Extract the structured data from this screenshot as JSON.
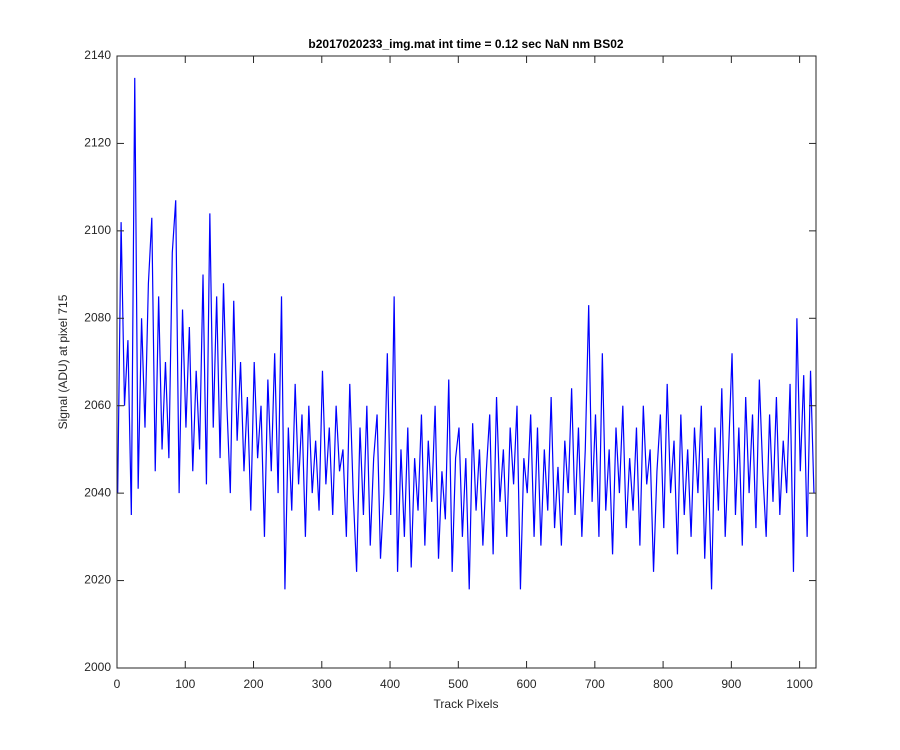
{
  "chart_data": {
    "type": "line",
    "title": "b2017020233_img.mat int time = 0.12 sec  NaN nm BS02",
    "x_label": "Track Pixels",
    "y_label": "Signal (ADU) at pixel 715",
    "x": [
      1,
      6,
      11,
      16,
      21,
      26,
      31,
      36,
      41,
      46,
      51,
      56,
      61,
      66,
      71,
      76,
      81,
      86,
      91,
      96,
      101,
      106,
      111,
      116,
      121,
      126,
      131,
      136,
      141,
      146,
      151,
      156,
      161,
      166,
      171,
      176,
      181,
      186,
      191,
      196,
      201,
      206,
      211,
      216,
      221,
      226,
      231,
      236,
      241,
      246,
      251,
      256,
      261,
      266,
      271,
      276,
      281,
      286,
      291,
      296,
      301,
      306,
      311,
      316,
      321,
      326,
      331,
      336,
      341,
      346,
      351,
      356,
      361,
      366,
      371,
      376,
      381,
      386,
      391,
      396,
      401,
      406,
      411,
      416,
      421,
      426,
      431,
      436,
      441,
      446,
      451,
      456,
      461,
      466,
      471,
      476,
      481,
      486,
      491,
      496,
      501,
      506,
      511,
      516,
      521,
      526,
      531,
      536,
      541,
      546,
      551,
      556,
      561,
      566,
      571,
      576,
      581,
      586,
      591,
      596,
      601,
      606,
      611,
      616,
      621,
      626,
      631,
      636,
      641,
      646,
      651,
      656,
      661,
      666,
      671,
      676,
      681,
      686,
      691,
      696,
      701,
      706,
      711,
      716,
      721,
      726,
      731,
      736,
      741,
      746,
      751,
      756,
      761,
      766,
      771,
      776,
      781,
      786,
      791,
      796,
      801,
      806,
      811,
      816,
      821,
      826,
      831,
      836,
      841,
      846,
      851,
      856,
      861,
      866,
      871,
      876,
      881,
      886,
      891,
      896,
      901,
      906,
      911,
      916,
      921,
      926,
      931,
      936,
      941,
      946,
      951,
      956,
      961,
      966,
      971,
      976,
      981,
      986,
      991,
      996,
      1001,
      1006,
      1011,
      1016,
      1021
    ],
    "series": [
      {
        "color": "#0000ff",
        "values": [
          2040,
          2102,
          2060,
          2075,
          2035,
          2135,
          2041,
          2080,
          2055,
          2088,
          2103,
          2045,
          2085,
          2050,
          2070,
          2048,
          2095,
          2107,
          2040,
          2082,
          2055,
          2078,
          2045,
          2068,
          2050,
          2090,
          2042,
          2104,
          2055,
          2085,
          2048,
          2088,
          2060,
          2040,
          2084,
          2052,
          2070,
          2045,
          2062,
          2036,
          2070,
          2048,
          2060,
          2030,
          2066,
          2045,
          2072,
          2040,
          2085,
          2018,
          2055,
          2036,
          2065,
          2042,
          2058,
          2030,
          2060,
          2040,
          2052,
          2036,
          2068,
          2042,
          2055,
          2035,
          2060,
          2045,
          2050,
          2030,
          2065,
          2040,
          2022,
          2055,
          2035,
          2060,
          2028,
          2048,
          2058,
          2025,
          2040,
          2072,
          2035,
          2085,
          2022,
          2050,
          2030,
          2055,
          2023,
          2048,
          2036,
          2058,
          2028,
          2052,
          2038,
          2060,
          2025,
          2045,
          2034,
          2066,
          2022,
          2048,
          2055,
          2030,
          2048,
          2018,
          2056,
          2036,
          2050,
          2028,
          2045,
          2058,
          2026,
          2062,
          2038,
          2050,
          2030,
          2055,
          2042,
          2060,
          2018,
          2048,
          2040,
          2058,
          2030,
          2055,
          2028,
          2050,
          2036,
          2062,
          2032,
          2046,
          2028,
          2052,
          2040,
          2064,
          2035,
          2055,
          2030,
          2050,
          2083,
          2038,
          2058,
          2030,
          2072,
          2036,
          2050,
          2026,
          2055,
          2040,
          2060,
          2032,
          2048,
          2036,
          2055,
          2028,
          2060,
          2042,
          2050,
          2022,
          2045,
          2058,
          2032,
          2065,
          2040,
          2052,
          2026,
          2058,
          2035,
          2050,
          2030,
          2055,
          2040,
          2060,
          2025,
          2048,
          2018,
          2055,
          2036,
          2064,
          2030,
          2050,
          2072,
          2035,
          2055,
          2028,
          2062,
          2040,
          2058,
          2032,
          2066,
          2045,
          2030,
          2058,
          2038,
          2062,
          2035,
          2052,
          2040,
          2065,
          2022,
          2080,
          2045,
          2067,
          2030,
          2068,
          2040
        ]
      }
    ],
    "xlim": [
      0,
      1024
    ],
    "ylim": [
      2000,
      2140
    ],
    "xticks": [
      0,
      100,
      200,
      300,
      400,
      500,
      600,
      700,
      800,
      900,
      1000
    ],
    "yticks": [
      2000,
      2020,
      2040,
      2060,
      2080,
      2100,
      2120,
      2140
    ]
  }
}
